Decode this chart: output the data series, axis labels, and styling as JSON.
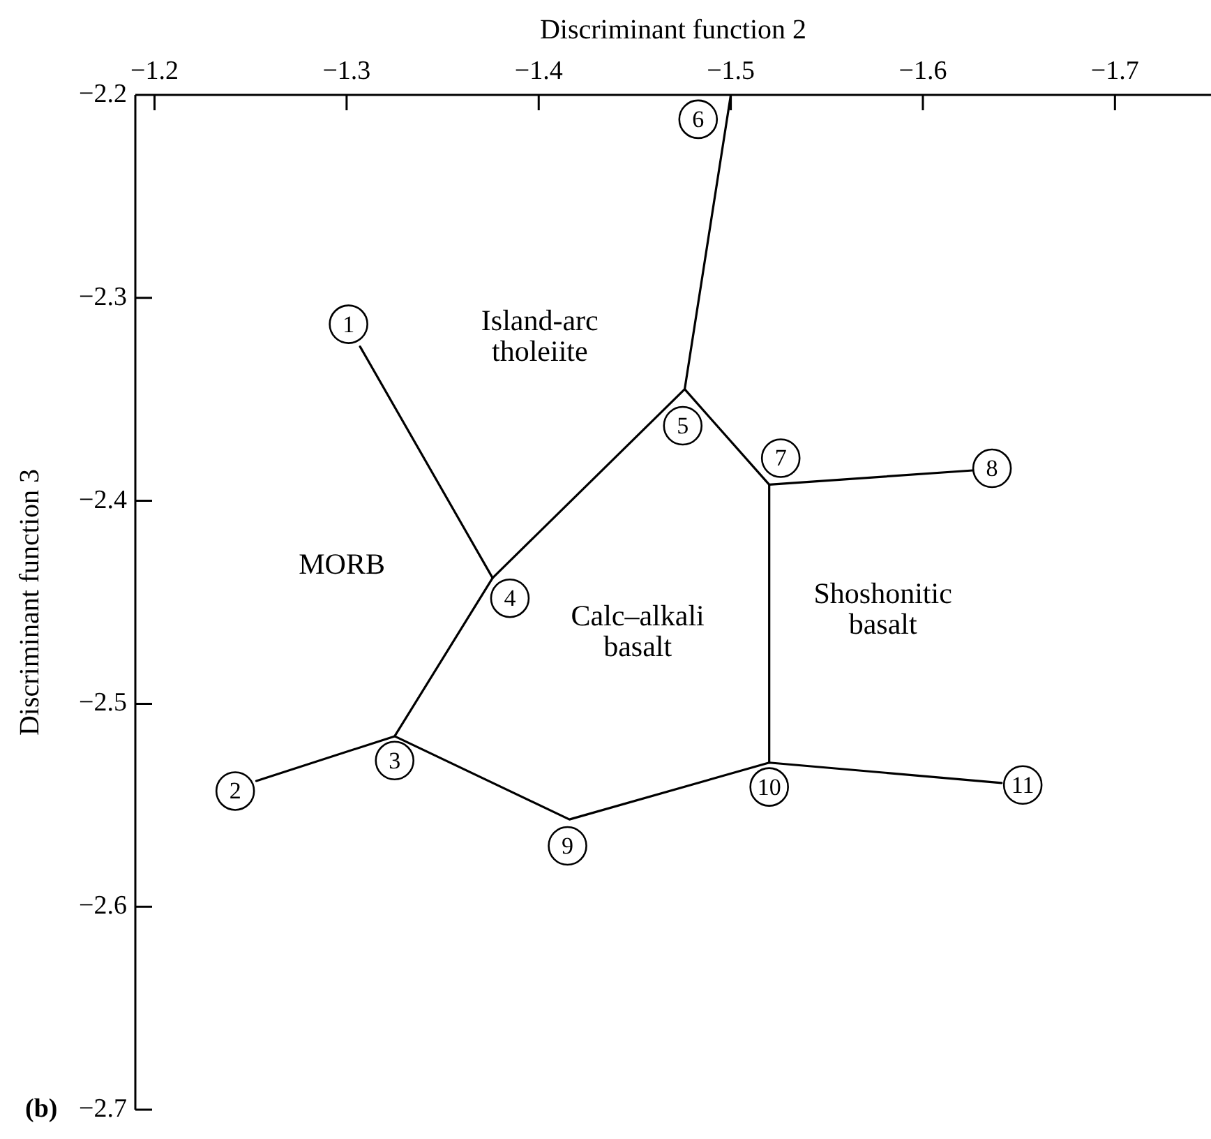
{
  "chart_data": {
    "type": "line",
    "xlabel": "Discriminant function 2",
    "ylabel": "Discriminant function 3",
    "xlim": [
      -1.19,
      -1.75
    ],
    "xticks": [
      {
        "value": -1.2,
        "label": "−1.2"
      },
      {
        "value": -1.3,
        "label": "−1.3"
      },
      {
        "value": -1.4,
        "label": "−1.4"
      },
      {
        "value": -1.5,
        "label": "−1.5"
      },
      {
        "value": -1.6,
        "label": "−1.6"
      },
      {
        "value": -1.7,
        "label": "−1.7"
      }
    ],
    "ylim": [
      -2.7,
      -2.2
    ],
    "yticks": [
      {
        "value": -2.2,
        "label": "−2.2"
      },
      {
        "value": -2.3,
        "label": "−2.3"
      },
      {
        "value": -2.4,
        "label": "−2.4"
      },
      {
        "value": -2.5,
        "label": "−2.5"
      },
      {
        "value": -2.6,
        "label": "−2.6"
      },
      {
        "value": -2.7,
        "label": "−2.7"
      }
    ],
    "series": [
      {
        "color": "#000000",
        "x": [
          -1.307,
          -1.376
        ],
        "values": [
          -2.324,
          -2.438
        ]
      },
      {
        "color": "#000000",
        "x": [
          -1.253,
          -1.325,
          -1.416,
          -1.52,
          -1.641
        ],
        "values": [
          -2.538,
          -2.516,
          -2.557,
          -2.529,
          -2.539
        ]
      },
      {
        "color": "#000000",
        "x": [
          -1.325,
          -1.376,
          -1.476,
          -1.5
        ],
        "values": [
          -2.516,
          -2.438,
          -2.345,
          -2.2
        ]
      },
      {
        "color": "#000000",
        "x": [
          -1.476,
          -1.52,
          -1.626
        ],
        "values": [
          -2.345,
          -2.392,
          -2.385
        ]
      },
      {
        "color": "#000000",
        "x": [
          -1.52,
          -1.52
        ],
        "values": [
          -2.392,
          -2.529
        ]
      }
    ],
    "annotations": [
      {
        "text": "1",
        "x": -1.301,
        "y": -2.313
      },
      {
        "text": "2",
        "x": -1.242,
        "y": -2.543
      },
      {
        "text": "3",
        "x": -1.325,
        "y": -2.528
      },
      {
        "text": "4",
        "x": -1.385,
        "y": -2.448
      },
      {
        "text": "5",
        "x": -1.475,
        "y": -2.363
      },
      {
        "text": "6",
        "x": -1.483,
        "y": -2.212
      },
      {
        "text": "7",
        "x": -1.526,
        "y": -2.379
      },
      {
        "text": "8",
        "x": -1.636,
        "y": -2.384
      },
      {
        "text": "9",
        "x": -1.415,
        "y": -2.57
      },
      {
        "text": "10",
        "x": -1.52,
        "y": -2.541
      },
      {
        "text": "11",
        "x": -1.652,
        "y": -2.54
      },
      "Island-arc\ntholeiite",
      "MORB",
      "Calc–alkali\nbasalt",
      "Shoshonitic\nbasalt",
      "(b)"
    ]
  }
}
